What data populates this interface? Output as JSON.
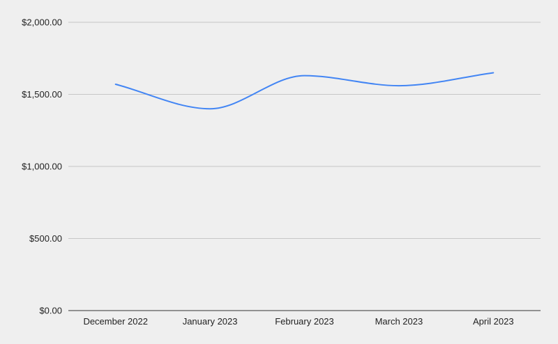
{
  "chart_data": {
    "type": "line",
    "title": "",
    "xlabel": "",
    "ylabel": "",
    "categories": [
      "December 2022",
      "January 2023",
      "February 2023",
      "March 2023",
      "April 2023"
    ],
    "series": [
      {
        "values": [
          1570,
          1400,
          1630,
          1560,
          1650
        ],
        "color": "#4285f4"
      }
    ],
    "ylim": [
      0,
      2000
    ],
    "yticks": [
      0,
      500,
      1000,
      1500,
      2000
    ],
    "ytick_labels": [
      "$0.00",
      "$500.00",
      "$1,000.00",
      "$1,500.00",
      "$2,000.00"
    ],
    "grid": true,
    "legend": "none",
    "smooth": true,
    "background": "#efefef"
  }
}
